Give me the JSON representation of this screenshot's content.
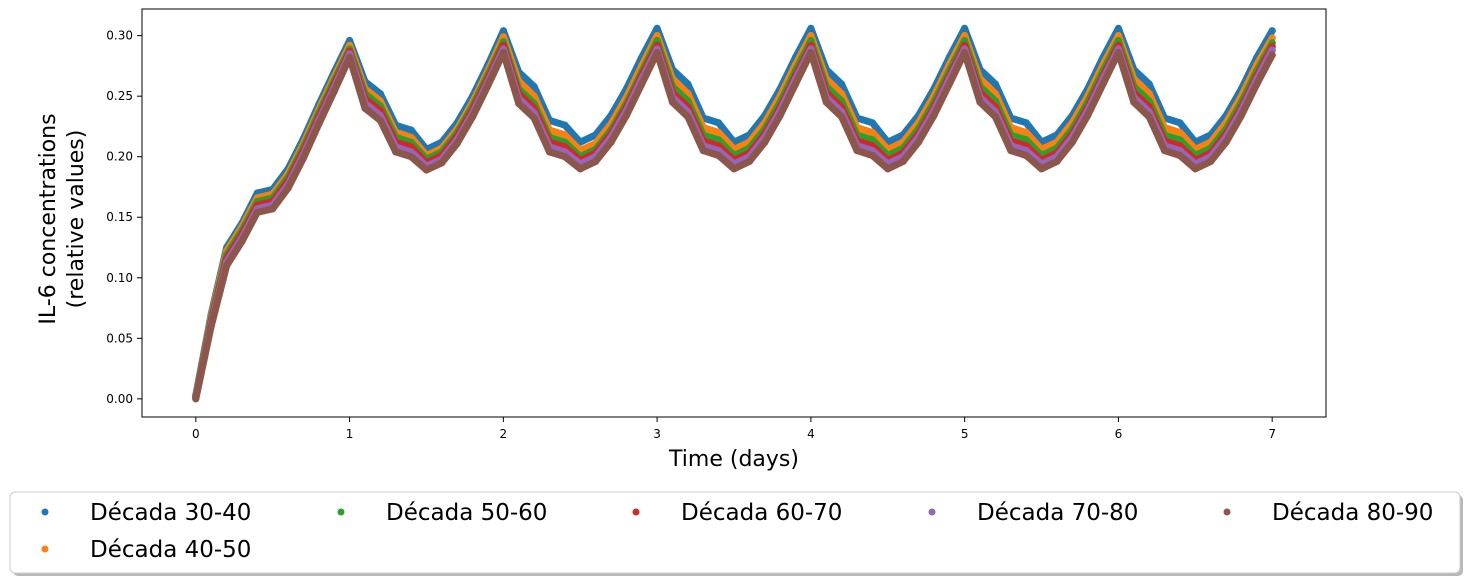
{
  "chart_data": {
    "type": "scatter",
    "title": "",
    "xlabel": "Time (days)",
    "ylabel_lines": [
      "IL-6 concentrations",
      "(relative values)"
    ],
    "xlim": [
      -0.35,
      7.35
    ],
    "ylim": [
      -0.015,
      0.322
    ],
    "xticks": [
      0,
      1,
      2,
      3,
      4,
      5,
      6,
      7
    ],
    "yticks": [
      0.0,
      0.05,
      0.1,
      0.15,
      0.2,
      0.25,
      0.3
    ],
    "ytick_labels": [
      "0.00",
      "0.05",
      "0.10",
      "0.15",
      "0.20",
      "0.25",
      "0.30"
    ],
    "legend_placement": "below",
    "series": [
      {
        "name": "Década 30-40",
        "color": "#1f77b4",
        "x": [
          0,
          0.1,
          0.2,
          0.3,
          0.4,
          0.5,
          0.6,
          0.7,
          0.8,
          0.9,
          1.0,
          1.1,
          1.2,
          1.3,
          1.4,
          1.5,
          1.6,
          1.7,
          1.8,
          1.9,
          2.0,
          2.1,
          2.2,
          2.3,
          2.4,
          2.5,
          2.6,
          2.7,
          2.8,
          2.9,
          3.0,
          3.1,
          3.2,
          3.3,
          3.4,
          3.5,
          3.6,
          3.7,
          3.8,
          3.9,
          4.0,
          4.1,
          4.2,
          4.3,
          4.4,
          4.5,
          4.6,
          4.7,
          4.8,
          4.9,
          5.0,
          5.1,
          5.2,
          5.3,
          5.4,
          5.5,
          5.6,
          5.7,
          5.8,
          5.9,
          6.0,
          6.1,
          6.2,
          6.3,
          6.4,
          6.5,
          6.6,
          6.7,
          6.8,
          6.9,
          7.0
        ],
        "y": [
          0.003,
          0.07,
          0.125,
          0.145,
          0.17,
          0.173,
          0.19,
          0.215,
          0.243,
          0.27,
          0.296,
          0.262,
          0.252,
          0.226,
          0.222,
          0.206,
          0.212,
          0.228,
          0.25,
          0.276,
          0.304,
          0.27,
          0.258,
          0.23,
          0.226,
          0.212,
          0.218,
          0.234,
          0.256,
          0.282,
          0.306,
          0.272,
          0.26,
          0.232,
          0.228,
          0.212,
          0.218,
          0.234,
          0.256,
          0.282,
          0.306,
          0.272,
          0.26,
          0.232,
          0.228,
          0.212,
          0.218,
          0.234,
          0.256,
          0.282,
          0.306,
          0.272,
          0.26,
          0.232,
          0.228,
          0.212,
          0.218,
          0.234,
          0.256,
          0.282,
          0.306,
          0.272,
          0.26,
          0.232,
          0.228,
          0.212,
          0.218,
          0.234,
          0.256,
          0.282,
          0.304
        ]
      },
      {
        "name": "Década 40-50",
        "color": "#ff7f0e",
        "x": [
          0,
          0.1,
          0.2,
          0.3,
          0.4,
          0.5,
          0.6,
          0.7,
          0.8,
          0.9,
          1.0,
          1.1,
          1.2,
          1.3,
          1.4,
          1.5,
          1.6,
          1.7,
          1.8,
          1.9,
          2.0,
          2.1,
          2.2,
          2.3,
          2.4,
          2.5,
          2.6,
          2.7,
          2.8,
          2.9,
          3.0,
          3.1,
          3.2,
          3.3,
          3.4,
          3.5,
          3.6,
          3.7,
          3.8,
          3.9,
          4.0,
          4.1,
          4.2,
          4.3,
          4.4,
          4.5,
          4.6,
          4.7,
          4.8,
          4.9,
          5.0,
          5.1,
          5.2,
          5.3,
          5.4,
          5.5,
          5.6,
          5.7,
          5.8,
          5.9,
          6.0,
          6.1,
          6.2,
          6.3,
          6.4,
          6.5,
          6.6,
          6.7,
          6.8,
          6.9,
          7.0
        ],
        "y": [
          0.002,
          0.068,
          0.122,
          0.142,
          0.166,
          0.169,
          0.186,
          0.211,
          0.239,
          0.266,
          0.292,
          0.256,
          0.246,
          0.22,
          0.216,
          0.201,
          0.207,
          0.223,
          0.245,
          0.271,
          0.299,
          0.262,
          0.25,
          0.222,
          0.218,
          0.205,
          0.211,
          0.227,
          0.249,
          0.275,
          0.3,
          0.264,
          0.252,
          0.224,
          0.22,
          0.206,
          0.212,
          0.228,
          0.25,
          0.276,
          0.3,
          0.264,
          0.252,
          0.224,
          0.22,
          0.206,
          0.212,
          0.228,
          0.25,
          0.276,
          0.3,
          0.264,
          0.252,
          0.224,
          0.22,
          0.206,
          0.212,
          0.228,
          0.25,
          0.276,
          0.3,
          0.264,
          0.252,
          0.224,
          0.22,
          0.206,
          0.212,
          0.228,
          0.25,
          0.276,
          0.298
        ]
      },
      {
        "name": "Década 50-60",
        "color": "#2ca02c",
        "x": [
          0,
          0.1,
          0.2,
          0.3,
          0.4,
          0.5,
          0.6,
          0.7,
          0.8,
          0.9,
          1.0,
          1.1,
          1.2,
          1.3,
          1.4,
          1.5,
          1.6,
          1.7,
          1.8,
          1.9,
          2.0,
          2.1,
          2.2,
          2.3,
          2.4,
          2.5,
          2.6,
          2.7,
          2.8,
          2.9,
          3.0,
          3.1,
          3.2,
          3.3,
          3.4,
          3.5,
          3.6,
          3.7,
          3.8,
          3.9,
          4.0,
          4.1,
          4.2,
          4.3,
          4.4,
          4.5,
          4.6,
          4.7,
          4.8,
          4.9,
          5.0,
          5.1,
          5.2,
          5.3,
          5.4,
          5.5,
          5.6,
          5.7,
          5.8,
          5.9,
          6.0,
          6.1,
          6.2,
          6.3,
          6.4,
          6.5,
          6.6,
          6.7,
          6.8,
          6.9,
          7.0
        ],
        "y": [
          0.002,
          0.066,
          0.119,
          0.139,
          0.163,
          0.166,
          0.183,
          0.208,
          0.236,
          0.263,
          0.289,
          0.252,
          0.242,
          0.216,
          0.212,
          0.198,
          0.204,
          0.22,
          0.242,
          0.268,
          0.295,
          0.256,
          0.244,
          0.216,
          0.212,
          0.2,
          0.206,
          0.222,
          0.244,
          0.27,
          0.296,
          0.258,
          0.246,
          0.218,
          0.214,
          0.201,
          0.207,
          0.223,
          0.245,
          0.271,
          0.296,
          0.258,
          0.246,
          0.218,
          0.214,
          0.201,
          0.207,
          0.223,
          0.245,
          0.271,
          0.296,
          0.258,
          0.246,
          0.218,
          0.214,
          0.201,
          0.207,
          0.223,
          0.245,
          0.271,
          0.296,
          0.258,
          0.246,
          0.218,
          0.214,
          0.201,
          0.207,
          0.223,
          0.245,
          0.271,
          0.294
        ]
      },
      {
        "name": "Década 60-70",
        "color": "#d62728",
        "x": [
          0,
          0.1,
          0.2,
          0.3,
          0.4,
          0.5,
          0.6,
          0.7,
          0.8,
          0.9,
          1.0,
          1.1,
          1.2,
          1.3,
          1.4,
          1.5,
          1.6,
          1.7,
          1.8,
          1.9,
          2.0,
          2.1,
          2.2,
          2.3,
          2.4,
          2.5,
          2.6,
          2.7,
          2.8,
          2.9,
          3.0,
          3.1,
          3.2,
          3.3,
          3.4,
          3.5,
          3.6,
          3.7,
          3.8,
          3.9,
          4.0,
          4.1,
          4.2,
          4.3,
          4.4,
          4.5,
          4.6,
          4.7,
          4.8,
          4.9,
          5.0,
          5.1,
          5.2,
          5.3,
          5.4,
          5.5,
          5.6,
          5.7,
          5.8,
          5.9,
          6.0,
          6.1,
          6.2,
          6.3,
          6.4,
          6.5,
          6.6,
          6.7,
          6.8,
          6.9,
          7.0
        ],
        "y": [
          0.001,
          0.064,
          0.116,
          0.136,
          0.16,
          0.163,
          0.18,
          0.205,
          0.233,
          0.26,
          0.287,
          0.248,
          0.238,
          0.212,
          0.208,
          0.195,
          0.201,
          0.217,
          0.239,
          0.265,
          0.292,
          0.252,
          0.24,
          0.212,
          0.208,
          0.197,
          0.203,
          0.219,
          0.241,
          0.267,
          0.292,
          0.253,
          0.241,
          0.213,
          0.209,
          0.197,
          0.203,
          0.219,
          0.241,
          0.267,
          0.292,
          0.253,
          0.241,
          0.213,
          0.209,
          0.197,
          0.203,
          0.219,
          0.241,
          0.267,
          0.292,
          0.253,
          0.241,
          0.213,
          0.209,
          0.197,
          0.203,
          0.219,
          0.241,
          0.267,
          0.292,
          0.253,
          0.241,
          0.213,
          0.209,
          0.197,
          0.203,
          0.219,
          0.241,
          0.267,
          0.291
        ]
      },
      {
        "name": "Década 70-80",
        "color": "#9467bd",
        "x": [
          0,
          0.1,
          0.2,
          0.3,
          0.4,
          0.5,
          0.6,
          0.7,
          0.8,
          0.9,
          1.0,
          1.1,
          1.2,
          1.3,
          1.4,
          1.5,
          1.6,
          1.7,
          1.8,
          1.9,
          2.0,
          2.1,
          2.2,
          2.3,
          2.4,
          2.5,
          2.6,
          2.7,
          2.8,
          2.9,
          3.0,
          3.1,
          3.2,
          3.3,
          3.4,
          3.5,
          3.6,
          3.7,
          3.8,
          3.9,
          4.0,
          4.1,
          4.2,
          4.3,
          4.4,
          4.5,
          4.6,
          4.7,
          4.8,
          4.9,
          5.0,
          5.1,
          5.2,
          5.3,
          5.4,
          5.5,
          5.6,
          5.7,
          5.8,
          5.9,
          6.0,
          6.1,
          6.2,
          6.3,
          6.4,
          6.5,
          6.6,
          6.7,
          6.8,
          6.9,
          7.0
        ],
        "y": [
          0.001,
          0.062,
          0.113,
          0.133,
          0.157,
          0.16,
          0.177,
          0.202,
          0.23,
          0.257,
          0.285,
          0.244,
          0.234,
          0.208,
          0.204,
          0.192,
          0.198,
          0.214,
          0.236,
          0.262,
          0.289,
          0.248,
          0.236,
          0.208,
          0.204,
          0.194,
          0.2,
          0.216,
          0.238,
          0.264,
          0.289,
          0.249,
          0.237,
          0.209,
          0.205,
          0.194,
          0.2,
          0.216,
          0.238,
          0.264,
          0.289,
          0.249,
          0.237,
          0.209,
          0.205,
          0.194,
          0.2,
          0.216,
          0.238,
          0.264,
          0.289,
          0.249,
          0.237,
          0.209,
          0.205,
          0.194,
          0.2,
          0.216,
          0.238,
          0.264,
          0.289,
          0.249,
          0.237,
          0.209,
          0.205,
          0.194,
          0.2,
          0.216,
          0.238,
          0.264,
          0.288
        ]
      },
      {
        "name": "Década 80-90",
        "color": "#8c564b",
        "x": [
          0,
          0.1,
          0.2,
          0.3,
          0.4,
          0.5,
          0.6,
          0.7,
          0.8,
          0.9,
          1.0,
          1.1,
          1.2,
          1.3,
          1.4,
          1.5,
          1.6,
          1.7,
          1.8,
          1.9,
          2.0,
          2.1,
          2.2,
          2.3,
          2.4,
          2.5,
          2.6,
          2.7,
          2.8,
          2.9,
          3.0,
          3.1,
          3.2,
          3.3,
          3.4,
          3.5,
          3.6,
          3.7,
          3.8,
          3.9,
          4.0,
          4.1,
          4.2,
          4.3,
          4.4,
          4.5,
          4.6,
          4.7,
          4.8,
          4.9,
          5.0,
          5.1,
          5.2,
          5.3,
          5.4,
          5.5,
          5.6,
          5.7,
          5.8,
          5.9,
          6.0,
          6.1,
          6.2,
          6.3,
          6.4,
          6.5,
          6.6,
          6.7,
          6.8,
          6.9,
          7.0
        ],
        "y": [
          0.0,
          0.06,
          0.11,
          0.13,
          0.154,
          0.157,
          0.174,
          0.199,
          0.227,
          0.254,
          0.282,
          0.24,
          0.23,
          0.204,
          0.2,
          0.189,
          0.195,
          0.211,
          0.233,
          0.259,
          0.286,
          0.244,
          0.232,
          0.204,
          0.2,
          0.19,
          0.196,
          0.212,
          0.234,
          0.26,
          0.286,
          0.245,
          0.233,
          0.205,
          0.201,
          0.19,
          0.196,
          0.212,
          0.234,
          0.26,
          0.286,
          0.245,
          0.233,
          0.205,
          0.201,
          0.19,
          0.196,
          0.212,
          0.234,
          0.26,
          0.286,
          0.245,
          0.233,
          0.205,
          0.201,
          0.19,
          0.196,
          0.212,
          0.234,
          0.26,
          0.286,
          0.245,
          0.233,
          0.205,
          0.201,
          0.19,
          0.196,
          0.212,
          0.234,
          0.26,
          0.284
        ]
      }
    ]
  }
}
